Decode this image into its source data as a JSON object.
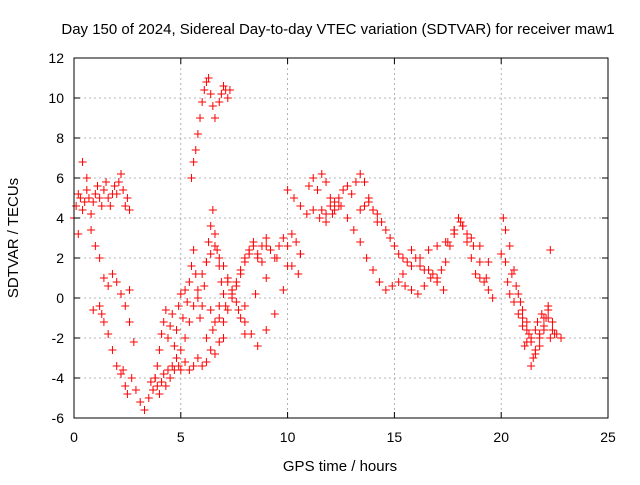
{
  "chart_data": {
    "type": "scatter",
    "title": "Day 150 of 2024, Sidereal Day-to-day VTEC variation (SDTVAR) for receiver maw1",
    "xlabel": "GPS time / hours",
    "ylabel": "SDTVAR / TECUs",
    "xlim": [
      0,
      25
    ],
    "ylim": [
      -6,
      12
    ],
    "xticks": [
      0,
      5,
      10,
      15,
      20,
      25
    ],
    "yticks": [
      -6,
      -4,
      -2,
      0,
      2,
      4,
      6,
      8,
      10,
      12
    ],
    "grid": true,
    "marker": "+",
    "series": [
      {
        "name": "maw1",
        "color": "#ff0000",
        "x": [
          0.0,
          0.1,
          0.2,
          0.3,
          0.4,
          0.5,
          0.6,
          0.7,
          0.8,
          0.9,
          1.0,
          1.1,
          1.2,
          1.3,
          1.4,
          1.5,
          1.6,
          1.7,
          1.8,
          1.9,
          2.0,
          2.1,
          2.2,
          2.3,
          2.4,
          2.5,
          2.6,
          0.2,
          0.4,
          0.6,
          0.8,
          1.0,
          1.2,
          1.4,
          1.6,
          1.8,
          2.0,
          2.2,
          2.4,
          2.6,
          1.2,
          1.4,
          1.6,
          1.8,
          2.0,
          2.2,
          2.4,
          2.6,
          2.8,
          0.9,
          1.3,
          2.3,
          2.5,
          2.7,
          2.9,
          3.1,
          3.3,
          3.5,
          3.6,
          3.7,
          3.8,
          3.9,
          4.0,
          4.1,
          4.2,
          4.3,
          4.4,
          4.5,
          4.6,
          4.7,
          4.8,
          4.9,
          5.0,
          5.2,
          5.4,
          5.6,
          5.8,
          6.0,
          6.2,
          6.4,
          6.6,
          6.8,
          7.0,
          3.7,
          3.8,
          3.9,
          4.0,
          4.1,
          4.2,
          4.3,
          4.4,
          4.5,
          4.6,
          4.7,
          4.8,
          4.9,
          5.0,
          5.1,
          5.2,
          5.3,
          5.4,
          5.5,
          5.6,
          5.7,
          5.8,
          5.9,
          6.0,
          6.1,
          6.2,
          6.3,
          6.4,
          6.5,
          6.6,
          6.7,
          6.8,
          6.9,
          7.0,
          5.0,
          5.2,
          5.4,
          5.6,
          5.8,
          6.0,
          6.2,
          6.4,
          6.6,
          6.8,
          7.0,
          7.2,
          7.4,
          7.6,
          7.8,
          8.0,
          8.2,
          8.4,
          8.6,
          8.8,
          9.0,
          7.0,
          7.2,
          7.4,
          7.6,
          7.8,
          8.0,
          8.2,
          8.4,
          8.6,
          8.8,
          9.0,
          9.2,
          9.4,
          9.6,
          9.8,
          10.0,
          10.2,
          10.4,
          10.6,
          8.0,
          8.5,
          9.0,
          9.5,
          10.0,
          10.5,
          9.0,
          9.4,
          9.8,
          10.2,
          10.6,
          6.4,
          6.6,
          6.8,
          7.0,
          7.2,
          7.4,
          7.6,
          7.8,
          8.0,
          6.2,
          6.5,
          6.8,
          7.1,
          7.4,
          7.7,
          8.0,
          8.3,
          8.6,
          5.5,
          5.6,
          5.7,
          5.8,
          5.9,
          6.0,
          6.1,
          6.2,
          6.3,
          6.4,
          6.5,
          6.6,
          6.8,
          6.9,
          7.0,
          7.1,
          7.2,
          7.3,
          10.0,
          10.3,
          10.6,
          10.9,
          11.2,
          11.5,
          11.8,
          12.1,
          12.4,
          11.0,
          11.2,
          11.4,
          11.6,
          11.8,
          12.0,
          12.2,
          11.6,
          11.8,
          12.0,
          12.2,
          12.4,
          12.6,
          12.8,
          13.0,
          13.2,
          13.4,
          13.6,
          13.8,
          14.0,
          14.2,
          12.5,
          12.8,
          13.1,
          13.4,
          13.7,
          14.0,
          14.3,
          14.6,
          14.9,
          15.2,
          15.5,
          15.8,
          16.1,
          16.4,
          16.7,
          17.0,
          17.3,
          13.4,
          13.6,
          13.8,
          14.0,
          14.2,
          14.4,
          14.6,
          14.8,
          15.0,
          15.2,
          15.4,
          15.6,
          15.8,
          16.0,
          16.2,
          16.4,
          16.6,
          16.8,
          17.0,
          17.2,
          17.4,
          17.6,
          17.8,
          18.0,
          18.2,
          18.4,
          18.6,
          18.8,
          19.0,
          19.2,
          19.4,
          19.6,
          15.4,
          15.8,
          16.2,
          16.6,
          17.0,
          17.4,
          17.8,
          18.2,
          18.6,
          19.0,
          19.4,
          17.5,
          17.8,
          18.1,
          18.4,
          18.7,
          19.0,
          19.3,
          20.0,
          20.1,
          20.2,
          20.3,
          20.4,
          20.5,
          20.6,
          20.7,
          20.8,
          20.9,
          21.0,
          21.1,
          21.2,
          21.3,
          21.4,
          21.5,
          21.6,
          21.7,
          21.8,
          21.9,
          22.0,
          22.1,
          22.2,
          22.3,
          22.4,
          22.5,
          20.2,
          20.4,
          20.6,
          20.8,
          21.0,
          21.2,
          21.4,
          21.6,
          21.8,
          22.0,
          22.2,
          21.0,
          21.2,
          21.4,
          21.6,
          21.8,
          22.0,
          22.2,
          22.4,
          22.6,
          22.8,
          22.3
        ],
        "y": [
          4.0,
          4.6,
          5.2,
          5.0,
          4.4,
          4.8,
          5.4,
          5.0,
          4.2,
          4.8,
          5.2,
          5.6,
          5.0,
          4.6,
          5.4,
          5.8,
          5.0,
          4.6,
          5.2,
          5.6,
          5.2,
          5.8,
          6.2,
          5.4,
          4.6,
          5.0,
          4.4,
          3.2,
          6.8,
          6.0,
          3.4,
          2.6,
          2.0,
          1.0,
          0.6,
          1.2,
          0.8,
          0.2,
          -0.4,
          0.4,
          -0.4,
          -1.2,
          -1.8,
          -2.6,
          -3.4,
          -3.8,
          -4.4,
          -1.2,
          -2.2,
          -0.6,
          -0.8,
          -3.6,
          -4.8,
          -4.0,
          -4.6,
          -5.2,
          -5.6,
          -5.0,
          -4.2,
          -4.6,
          -4.0,
          -4.4,
          -4.8,
          -4.2,
          -3.8,
          -4.4,
          -3.6,
          -4.0,
          -3.4,
          -3.6,
          -3.0,
          -3.4,
          -3.6,
          -3.2,
          -3.6,
          -3.4,
          -3.0,
          -3.4,
          -3.2,
          -2.6,
          -2.8,
          -2.2,
          -2.0,
          -4.6,
          -4.0,
          -3.4,
          -2.6,
          -1.8,
          -1.2,
          -0.6,
          -2.0,
          -1.4,
          -0.8,
          -2.4,
          -1.6,
          -0.4,
          0.2,
          -1.0,
          0.4,
          -0.2,
          0.8,
          1.6,
          2.4,
          1.2,
          0.0,
          -1.0,
          -0.4,
          0.6,
          1.8,
          2.8,
          3.6,
          4.4,
          3.2,
          2.4,
          1.6,
          0.8,
          0.2,
          -2.6,
          -2.0,
          -1.2,
          -0.4,
          0.4,
          1.2,
          1.8,
          2.2,
          2.6,
          2.0,
          1.6,
          1.0,
          0.4,
          0.8,
          1.4,
          2.0,
          2.4,
          2.8,
          2.2,
          1.8,
          2.6,
          -1.2,
          -0.6,
          0.0,
          0.6,
          1.2,
          1.8,
          2.2,
          2.6,
          2.0,
          2.6,
          3.0,
          2.4,
          2.0,
          2.6,
          3.0,
          2.6,
          3.2,
          2.8,
          2.2,
          -0.4,
          0.2,
          1.0,
          2.0,
          1.6,
          1.2,
          -1.6,
          -0.8,
          0.4,
          1.6,
          2.2,
          -0.6,
          -1.2,
          -0.4,
          0.2,
          0.8,
          0.4,
          -0.2,
          -1.0,
          -1.8,
          -2.0,
          -1.6,
          -1.0,
          -0.4,
          0.2,
          -0.6,
          -1.2,
          -1.8,
          -2.4,
          6.0,
          6.8,
          7.4,
          8.2,
          9.0,
          9.8,
          10.4,
          10.8,
          11.0,
          10.2,
          9.6,
          9.0,
          9.8,
          10.2,
          10.6,
          10.4,
          10.0,
          10.4,
          5.4,
          5.0,
          4.6,
          4.2,
          4.4,
          4.0,
          3.8,
          4.2,
          4.6,
          5.6,
          6.0,
          5.4,
          6.2,
          5.8,
          5.0,
          4.4,
          4.4,
          4.2,
          4.6,
          4.8,
          5.0,
          5.4,
          5.6,
          5.2,
          5.8,
          6.2,
          5.8,
          5.0,
          4.4,
          3.8,
          4.6,
          4.0,
          3.4,
          2.8,
          2.0,
          1.4,
          0.8,
          0.4,
          0.6,
          0.8,
          0.6,
          0.4,
          0.2,
          0.6,
          1.0,
          0.8,
          0.4,
          4.4,
          4.6,
          4.8,
          4.4,
          4.2,
          3.8,
          3.4,
          3.0,
          2.6,
          2.2,
          2.0,
          1.8,
          2.4,
          2.0,
          1.6,
          1.4,
          1.4,
          1.2,
          1.0,
          1.4,
          1.8,
          2.6,
          3.4,
          4.0,
          3.6,
          2.8,
          2.0,
          1.2,
          1.0,
          0.8,
          0.4,
          0.0,
          1.2,
          1.6,
          2.0,
          2.4,
          2.6,
          2.8,
          3.2,
          3.6,
          3.0,
          2.6,
          1.8,
          2.8,
          3.4,
          3.8,
          3.2,
          2.6,
          1.8,
          1.0,
          2.2,
          4.0,
          1.8,
          0.8,
          0.2,
          1.2,
          -0.2,
          0.6,
          -0.8,
          -0.2,
          -1.0,
          -2.4,
          -1.6,
          -1.8,
          -2.2,
          -3.0,
          -1.6,
          -1.2,
          -2.0,
          -0.8,
          -1.4,
          -1.0,
          -0.6,
          -2.0,
          -1.6,
          -1.8,
          3.4,
          2.6,
          1.4,
          0.2,
          -0.6,
          -1.2,
          -2.0,
          -2.8,
          -2.4,
          -1.6,
          -1.0,
          -1.4,
          -2.2,
          -3.4,
          -2.6,
          -1.8,
          -1.0,
          -0.4,
          -1.2,
          -1.8,
          -2.0,
          2.4
        ]
      }
    ]
  }
}
